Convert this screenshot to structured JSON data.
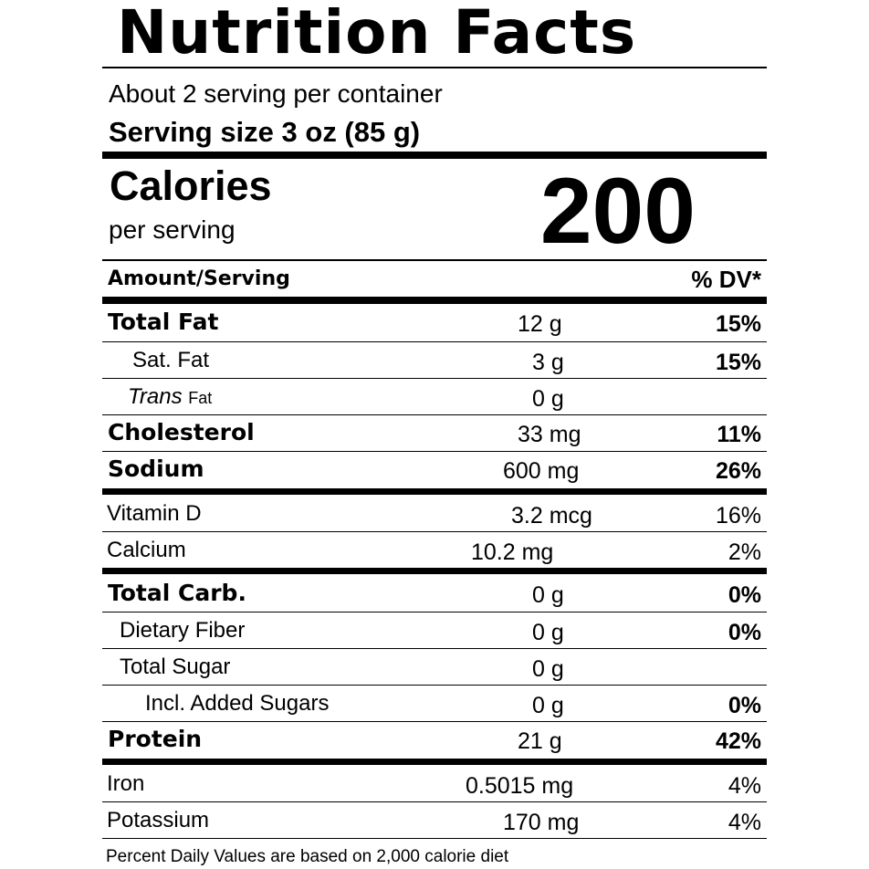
{
  "title": "Nutrition Facts",
  "servings_per_container": "About 2 serving per container",
  "serving_size": "Serving size 3 oz (85 g)",
  "calories": {
    "label": "Calories",
    "per": "per serving",
    "value": "200"
  },
  "header": {
    "left": "Amount/Serving",
    "right": "% DV*"
  },
  "nutrients": [
    {
      "name": "Total Fat",
      "amount": "12 g",
      "dv": "15%"
    },
    {
      "name": "Sat. Fat",
      "amount": "3 g",
      "dv": "15%"
    },
    {
      "name": "Trans",
      "name_suffix": "Fat",
      "amount": "0 g",
      "dv": ""
    },
    {
      "name": "Cholesterol",
      "amount": "33 mg",
      "dv": "11%"
    },
    {
      "name": "Sodium",
      "amount": "600 mg",
      "dv": "26%"
    },
    {
      "name": "Vitamin D",
      "amount": "3.2 mcg",
      "dv": "16%"
    },
    {
      "name": "Calcium",
      "amount": "10.2 mg",
      "dv": "2%"
    },
    {
      "name": "Total Carb.",
      "amount": "0 g",
      "dv": "0%"
    },
    {
      "name": "Dietary Fiber",
      "amount": "0 g",
      "dv": "0%"
    },
    {
      "name": "Total Sugar",
      "amount": "0 g",
      "dv": ""
    },
    {
      "name": "Incl. Added Sugars",
      "amount": "0 g",
      "dv": "0%"
    },
    {
      "name": "Protein",
      "amount": "21 g",
      "dv": "42%"
    },
    {
      "name": "Iron",
      "amount": "0.5015 mg",
      "dv": "4%"
    },
    {
      "name": "Potassium",
      "amount": "170 mg",
      "dv": "4%"
    }
  ],
  "footnote": "Percent Daily Values are based on 2,000 calorie diet"
}
